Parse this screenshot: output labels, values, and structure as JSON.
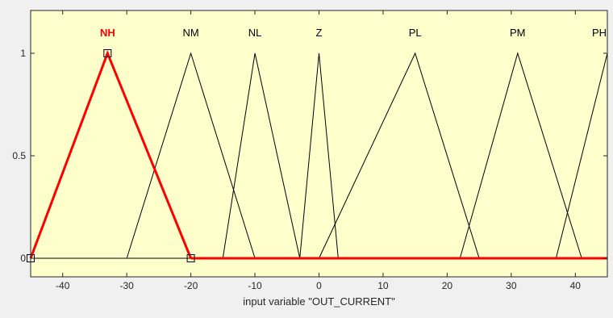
{
  "chart_data": {
    "type": "line",
    "xlabel": "input variable \"OUT_CURRENT\"",
    "xlim": [
      -45,
      45
    ],
    "ylim": [
      0,
      1
    ],
    "x_ticks": [
      -40,
      -30,
      -20,
      -10,
      0,
      10,
      20,
      30,
      40
    ],
    "x_tick_labels": [
      "-40",
      "-30",
      "-20",
      "-10",
      "0",
      "10",
      "20",
      "30",
      "40"
    ],
    "y_ticks": [
      0,
      0.5,
      1
    ],
    "y_tick_labels": [
      "0",
      "0.5",
      "1"
    ],
    "grid": false,
    "highlight_series": "NH",
    "series": [
      {
        "name": "NH",
        "x": [
          -45,
          -33,
          -20
        ],
        "y": [
          0,
          1,
          0
        ]
      },
      {
        "name": "NM",
        "x": [
          -30,
          -20,
          -10
        ],
        "y": [
          0,
          1,
          0
        ]
      },
      {
        "name": "NL",
        "x": [
          -15,
          -10,
          -3
        ],
        "y": [
          0,
          1,
          0
        ]
      },
      {
        "name": "Z",
        "x": [
          -3,
          0,
          3
        ],
        "y": [
          0,
          1,
          0
        ]
      },
      {
        "name": "PL",
        "x": [
          0,
          15,
          25
        ],
        "y": [
          0,
          1,
          0
        ]
      },
      {
        "name": "PM",
        "x": [
          22,
          31,
          41
        ],
        "y": [
          0,
          1,
          0
        ]
      },
      {
        "name": "PH",
        "x": [
          37,
          45
        ],
        "y": [
          0,
          1
        ]
      }
    ]
  },
  "colors": {
    "plot_background": "#ffffcc",
    "window_background": "#f0f0f0",
    "line": "#000000",
    "highlight": "#ff0000"
  }
}
